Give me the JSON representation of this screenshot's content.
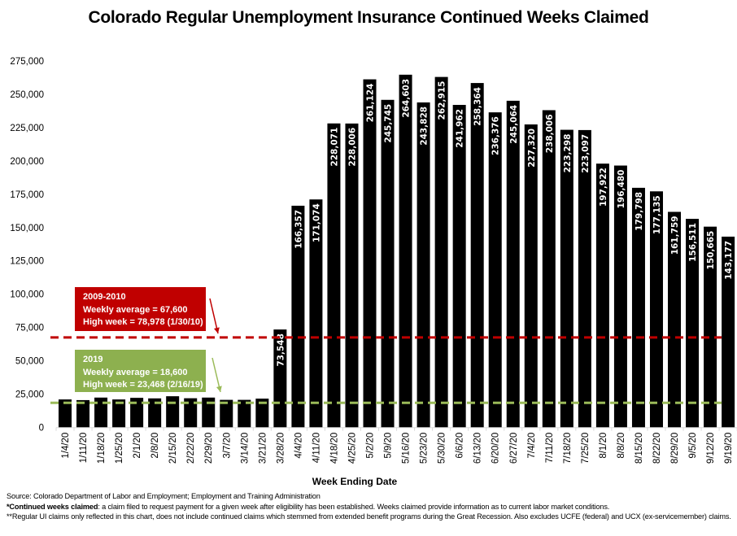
{
  "chart_data": {
    "type": "bar",
    "title": "Colorado Regular Unemployment Insurance Continued Weeks Claimed",
    "xlabel": "Week Ending Date",
    "ylabel": "",
    "ylim": [
      0,
      275000
    ],
    "yticks": [
      0,
      25000,
      50000,
      75000,
      100000,
      125000,
      150000,
      175000,
      200000,
      225000,
      250000,
      275000
    ],
    "ytick_labels": [
      "0",
      "25,000",
      "50,000",
      "75,000",
      "100,000",
      "125,000",
      "150,000",
      "175,000",
      "200,000",
      "225,000",
      "250,000",
      "275,000"
    ],
    "grid": false,
    "bar_color": "#000000",
    "categories": [
      "1/4/20",
      "1/11/20",
      "1/18/20",
      "1/25/20",
      "2/1/20",
      "2/8/20",
      "2/15/20",
      "2/22/20",
      "2/29/20",
      "3/7/20",
      "3/14/20",
      "3/21/20",
      "3/28/20",
      "4/4/20",
      "4/11/20",
      "4/18/20",
      "4/25/20",
      "5/2/20",
      "5/9/20",
      "5/16/20",
      "5/23/20",
      "5/30/20",
      "6/6/20",
      "6/13/20",
      "6/20/20",
      "6/27/20",
      "7/4/20",
      "7/11/20",
      "7/18/20",
      "7/25/20",
      "8/1/20",
      "8/8/20",
      "8/15/20",
      "8/22/20",
      "8/29/20",
      "9/5/20",
      "9/12/20",
      "9/19/20"
    ],
    "values": [
      21100,
      20600,
      22500,
      21100,
      22300,
      21900,
      23500,
      22000,
      22500,
      20800,
      20800,
      21700,
      73548,
      166357,
      171074,
      228071,
      228006,
      261124,
      245745,
      264603,
      243828,
      262915,
      241962,
      258364,
      236376,
      245064,
      227320,
      238006,
      223298,
      223097,
      197922,
      196480,
      179798,
      177135,
      161759,
      156511,
      150665,
      143177
    ],
    "data_labels": [
      null,
      null,
      null,
      null,
      null,
      null,
      null,
      null,
      null,
      null,
      null,
      null,
      "73,548",
      "166,357",
      "171,074",
      "228,071",
      "228,006",
      "261,124",
      "245,745",
      "264,603",
      "243,828",
      "262,915",
      "241,962",
      "258,364",
      "236,376",
      "245,064",
      "227,320",
      "238,006",
      "223,298",
      "223,097",
      "197,922",
      "196,480",
      "179,798",
      "177,135",
      "161,759",
      "156,511",
      "150,665",
      "143,177"
    ],
    "reference_lines": [
      {
        "name": "2009-2010 weekly average",
        "value": 67600,
        "color": "#c00000",
        "style": "dashed"
      },
      {
        "name": "2019 weekly average",
        "value": 18600,
        "color": "#9bbb59",
        "style": "dashed"
      }
    ],
    "annotations": [
      {
        "id": "recession",
        "color": "#c00000",
        "lines": [
          "2009-2010",
          "Weekly average = 67,600",
          "High week = 78,978 (1/30/10)"
        ]
      },
      {
        "id": "y2019",
        "color": "#8db04f",
        "lines": [
          "2019",
          "Weekly average = 18,600",
          "High week = 23,468 (2/16/19)"
        ]
      }
    ]
  },
  "footer": {
    "source": "Source: Colorado Department of Labor and Employment; Employment and Training Administration",
    "note1_bold": "*Continued weeks claimed",
    "note1_rest": ": a claim filed to request payment for a given week after eligibility has been established. Weeks claimed provide information as to current labor market conditions.",
    "note2": "**Regular UI claims only reflected in this chart, does not include continued claims which stemmed from extended benefit programs during the Great Recession. Also excludes UCFE (federal) and UCX (ex-servicemember) claims."
  }
}
